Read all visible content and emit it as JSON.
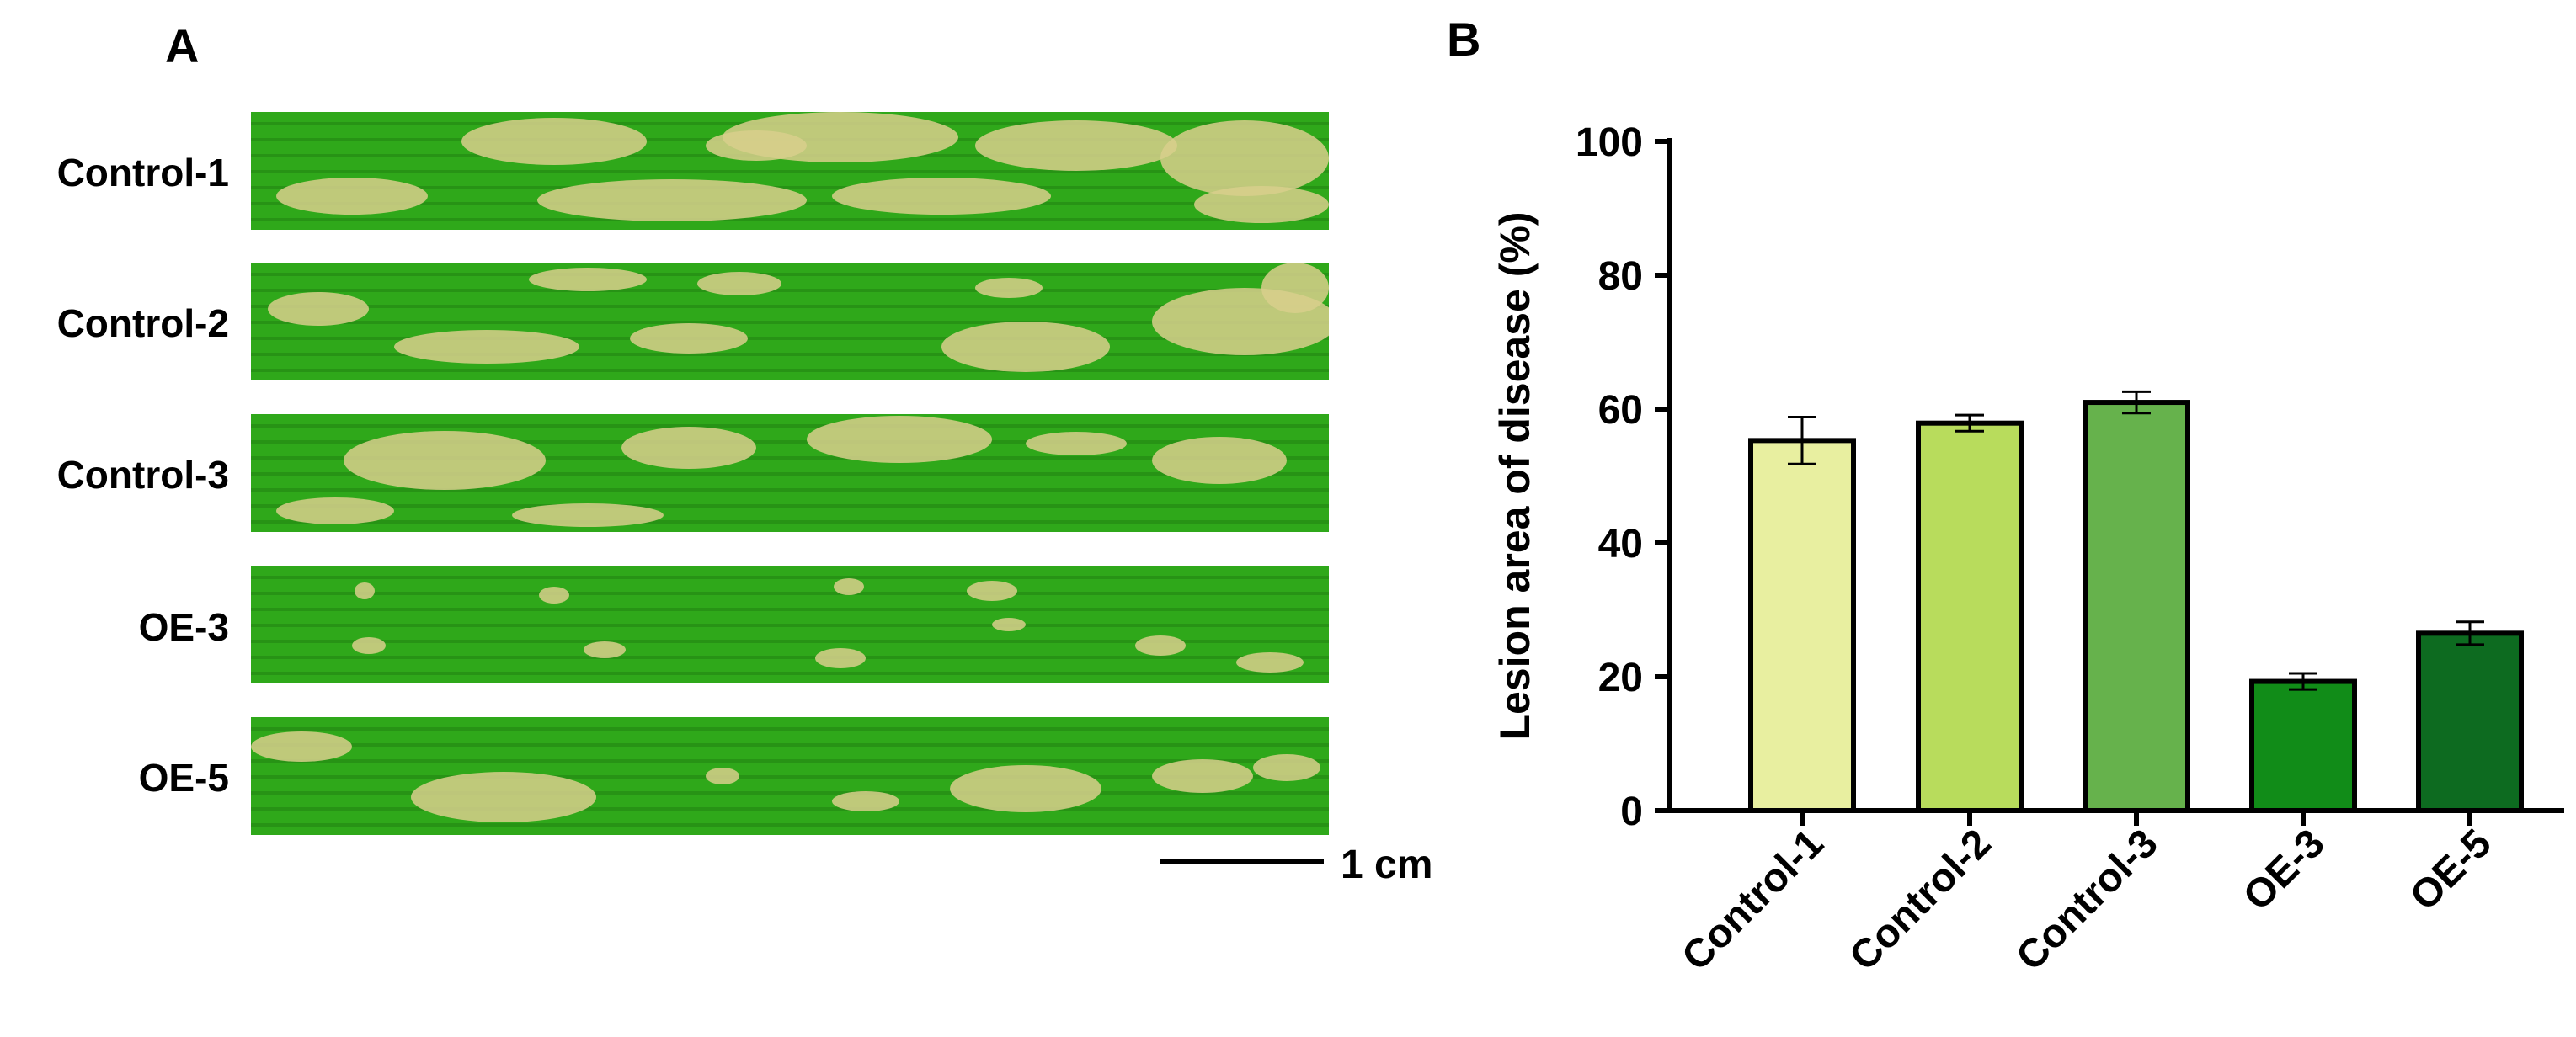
{
  "panels": {
    "a_label": "A",
    "b_label": "B"
  },
  "leaves": [
    {
      "label": "Control-1",
      "scheme": "heavy-lesions"
    },
    {
      "label": "Control-2",
      "scheme": "moderate-lesions"
    },
    {
      "label": "Control-3",
      "scheme": "large-lesions"
    },
    {
      "label": "OE-3",
      "scheme": "few-spots"
    },
    {
      "label": "OE-5",
      "scheme": "light-lesions"
    }
  ],
  "scale_bar": {
    "label": "1 cm"
  },
  "colors": {
    "leaf_green": "#2fa81a",
    "leaf_dark": "#1f7a10",
    "lesion": "#d8cf8c",
    "bar_colors": [
      "#e8efa0",
      "#b8dc5c",
      "#66b24c",
      "#118c18",
      "#0d6b20"
    ]
  },
  "chart_data": {
    "type": "bar",
    "title": "",
    "categories": [
      "Control-1",
      "Control-2",
      "Control-3",
      "OE-3",
      "OE-5"
    ],
    "values": [
      55.3,
      57.9,
      61.0,
      19.3,
      26.5
    ],
    "errors": [
      3.5,
      1.2,
      1.6,
      1.2,
      1.7
    ],
    "xlabel": "",
    "ylabel": "Lesion area of disease (%)",
    "ylim": [
      0,
      100
    ],
    "yticks": [
      0,
      20,
      40,
      60,
      80,
      100
    ],
    "grid": false
  }
}
